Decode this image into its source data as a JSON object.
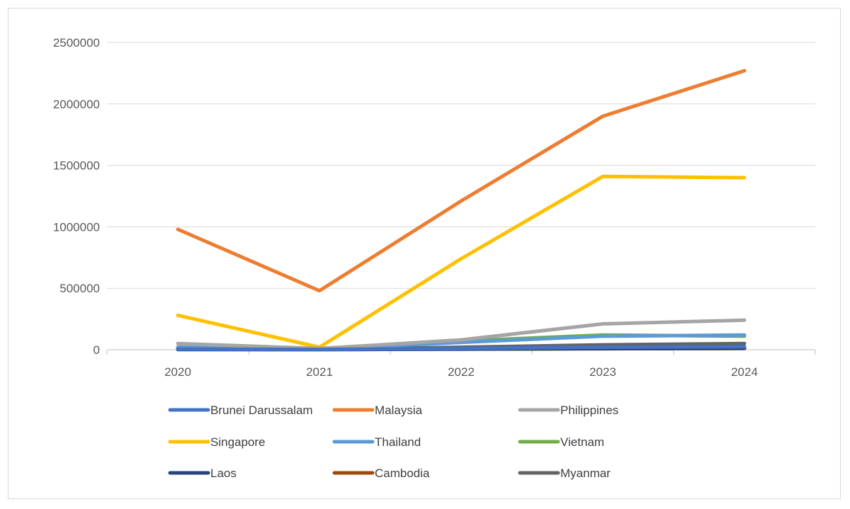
{
  "chart_data": {
    "type": "line",
    "title": "",
    "xlabel": "",
    "ylabel": "",
    "categories": [
      "2020",
      "2021",
      "2022",
      "2023",
      "2024"
    ],
    "ylim": [
      0,
      2500000
    ],
    "yticks": [
      0,
      500000,
      1000000,
      1500000,
      2000000,
      2500000
    ],
    "ytick_labels": [
      "0",
      "500000",
      "1000000",
      "1500000",
      "2000000",
      "2500000"
    ],
    "grid": true,
    "legend_position": "bottom",
    "series": [
      {
        "name": "Brunei Darussalam",
        "color": "#4472c4",
        "values": [
          5000,
          2000,
          10000,
          20000,
          25000
        ]
      },
      {
        "name": "Malaysia",
        "color": "#ed7d31",
        "values": [
          980000,
          480000,
          1210000,
          1900000,
          2270000
        ]
      },
      {
        "name": "Philippines",
        "color": "#a5a5a5",
        "values": [
          50000,
          10000,
          80000,
          210000,
          240000
        ]
      },
      {
        "name": "Singapore",
        "color": "#ffc000",
        "values": [
          280000,
          20000,
          740000,
          1410000,
          1400000
        ]
      },
      {
        "name": "Thailand",
        "color": "#5b9bd5",
        "values": [
          20000,
          5000,
          60000,
          110000,
          120000
        ]
      },
      {
        "name": "Vietnam",
        "color": "#70ad47",
        "values": [
          15000,
          5000,
          70000,
          120000,
          110000
        ]
      },
      {
        "name": "Laos",
        "color": "#264478",
        "values": [
          2000,
          1000,
          5000,
          10000,
          12000
        ]
      },
      {
        "name": "Cambodia",
        "color": "#9e480e",
        "values": [
          3000,
          1000,
          5000,
          8000,
          10000
        ]
      },
      {
        "name": "Myanmar",
        "color": "#636363",
        "values": [
          10000,
          3000,
          20000,
          40000,
          50000
        ]
      }
    ]
  }
}
